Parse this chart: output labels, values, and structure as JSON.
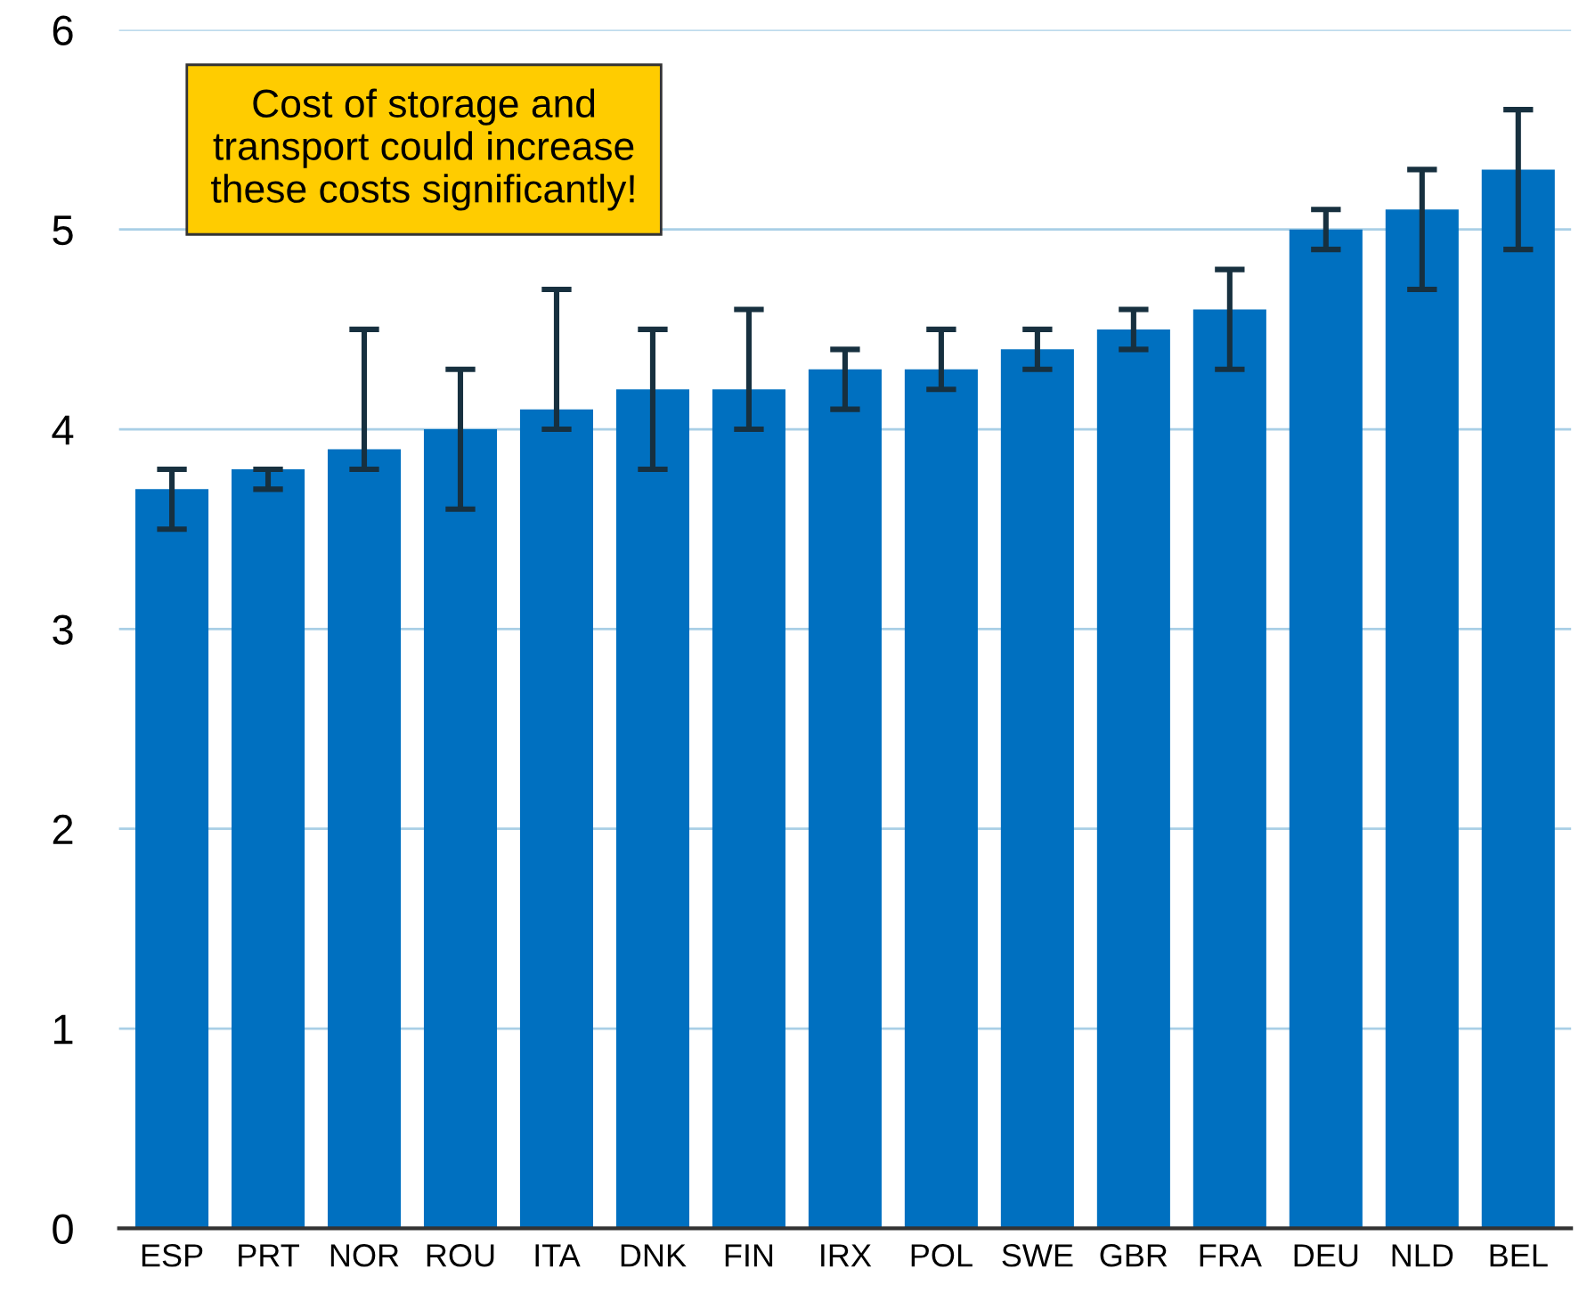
{
  "chart_data": {
    "type": "bar",
    "categories": [
      "ESP",
      "PRT",
      "NOR",
      "ROU",
      "ITA",
      "DNK",
      "FIN",
      "IRX",
      "POL",
      "SWE",
      "GBR",
      "FRA",
      "DEU",
      "NLD",
      "BEL"
    ],
    "values": [
      3.7,
      3.8,
      3.9,
      4.0,
      4.1,
      4.2,
      4.2,
      4.3,
      4.3,
      4.4,
      4.5,
      4.6,
      5.0,
      5.1,
      5.3
    ],
    "errors": [
      [
        3.5,
        3.8
      ],
      [
        3.7,
        3.8
      ],
      [
        3.8,
        4.5
      ],
      [
        3.6,
        4.3
      ],
      [
        4.0,
        4.7
      ],
      [
        3.8,
        4.5
      ],
      [
        4.0,
        4.6
      ],
      [
        4.1,
        4.4
      ],
      [
        4.2,
        4.5
      ],
      [
        4.3,
        4.5
      ],
      [
        4.4,
        4.6
      ],
      [
        4.3,
        4.8
      ],
      [
        4.9,
        5.1
      ],
      [
        4.7,
        5.3
      ],
      [
        4.9,
        5.6
      ]
    ],
    "color": "#0070c0",
    "ylim": [
      0,
      6
    ],
    "yticks": [
      0,
      1,
      2,
      3,
      4,
      5,
      6
    ],
    "grid": "y",
    "annotations": [
      "Cost of storage and\ntransport could increase\nthese costs significantly!"
    ]
  }
}
